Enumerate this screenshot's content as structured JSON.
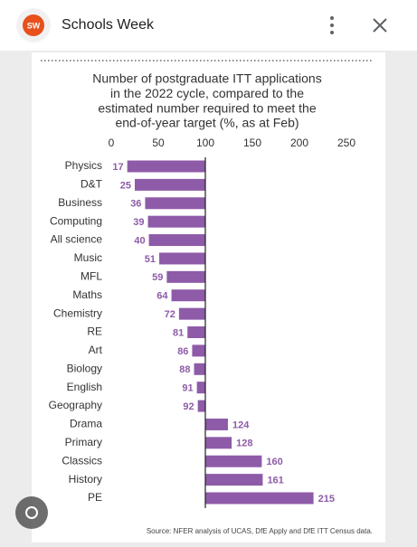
{
  "app_bar": {
    "logo": "SW",
    "title": "Schools Week"
  },
  "chart_data": {
    "type": "bar",
    "orientation": "horizontal",
    "title": [
      "Number of postgraduate ITT applications",
      "in the 2022 cycle, compared to the",
      "estimated number required to meet the",
      "end-of-year target (%, as at Feb)"
    ],
    "categories": [
      "Physics",
      "D&T",
      "Business",
      "Computing",
      "All science",
      "Music",
      "MFL",
      "Maths",
      "Chemistry",
      "RE",
      "Art",
      "Biology",
      "English",
      "Geography",
      "Drama",
      "Primary",
      "Classics",
      "History",
      "PE"
    ],
    "values": [
      17,
      25,
      36,
      39,
      40,
      51,
      59,
      64,
      72,
      81,
      86,
      88,
      91,
      92,
      124,
      128,
      160,
      161,
      215
    ],
    "color": "#8e5ba8",
    "baseline": 100,
    "xlim": [
      0,
      250
    ],
    "xticks": [
      0,
      50,
      100,
      150,
      200,
      250
    ],
    "source": "Source: NFER analysis of UCAS, DfE Apply and DfE ITT Census data."
  }
}
